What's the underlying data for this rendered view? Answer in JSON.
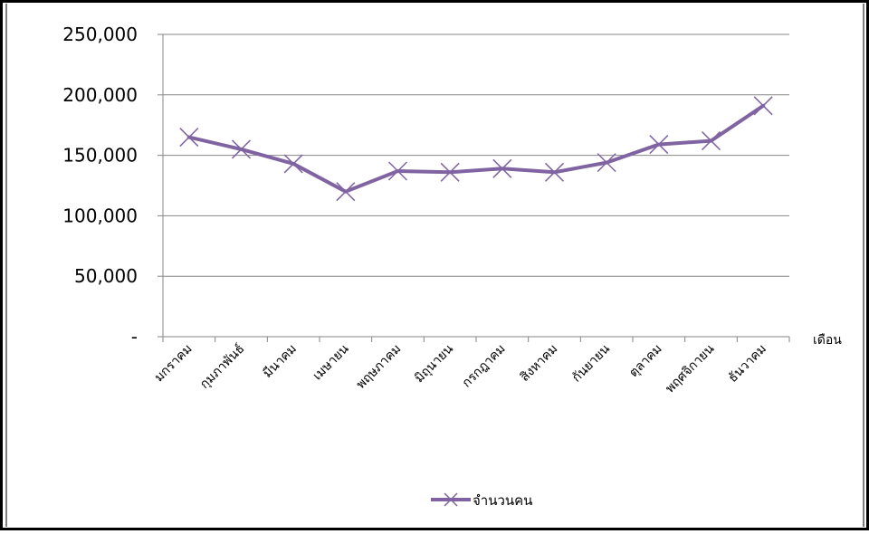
{
  "chart_data": {
    "type": "line",
    "categories": [
      "มกราคม",
      "กุมภาพันธ์",
      "มีนาคม",
      "เมษายน",
      "พฤษภาคม",
      "มิถุนายน",
      "กรกฎาคม",
      "สิงหาคม",
      "กันยายน",
      "ตุลาคม",
      "พฤศจิกายน",
      "ธันวาคม"
    ],
    "series": [
      {
        "name": "จำนวนคน",
        "values": [
          165000,
          155000,
          143000,
          120000,
          137000,
          136000,
          139000,
          136000,
          144000,
          159000,
          162000,
          191000
        ],
        "color": "#8064A2"
      }
    ],
    "yticks": [
      "-",
      "50,000",
      "100,000",
      "150,000",
      "200,000",
      "250,000"
    ],
    "ylim": [
      0,
      250000
    ],
    "xlabel": "เดือน",
    "ylabel": "",
    "grid": true,
    "legend_position": "bottom"
  }
}
